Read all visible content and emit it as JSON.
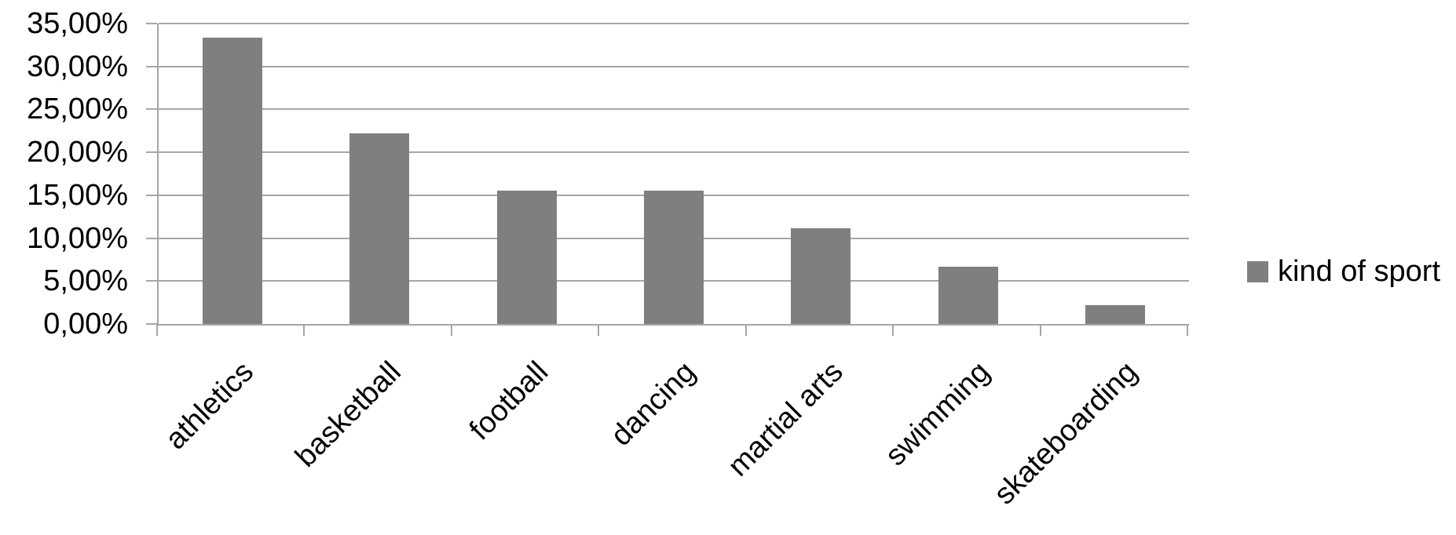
{
  "chart_data": {
    "type": "bar",
    "title": "",
    "categories": [
      "athletics",
      "basketball",
      "football",
      "dancing",
      "martial arts",
      "swimming",
      "skateboarding"
    ],
    "series": [
      {
        "name": "kind of sport",
        "values": [
          33.33,
          22.22,
          15.56,
          15.56,
          11.11,
          6.67,
          2.22
        ]
      }
    ],
    "y_tick_labels": [
      "35,00%",
      "30,00%",
      "25,00%",
      "20,00%",
      "15,00%",
      "10,00%",
      "5,00%",
      "0,00%"
    ],
    "ylim": [
      0,
      35
    ],
    "y_tick_step": 5,
    "grid": true,
    "legend_position": "right",
    "x_label_rotation_deg": 45
  },
  "legend": {
    "label": "kind of sport"
  },
  "colors": {
    "bar_fill": "#7f7f7f",
    "gridline": "#a6a6a6",
    "axis": "#a6a6a6",
    "text": "#000000",
    "background": "#ffffff",
    "legend_swatch": "#7f7f7f"
  }
}
